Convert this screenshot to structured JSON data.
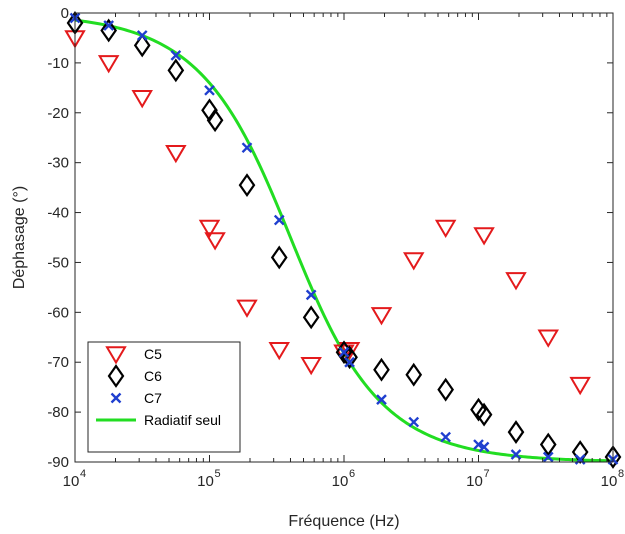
{
  "chart_data": {
    "type": "scatter",
    "xlabel": "Fréquence (Hz)",
    "ylabel": "Déphasage (°)",
    "xscale": "log",
    "xlim": [
      10000,
      100000000
    ],
    "ylim": [
      -90,
      0
    ],
    "x_ticks": [
      {
        "value": 10000,
        "base": "10",
        "exp": "4"
      },
      {
        "value": 100000,
        "base": "10",
        "exp": "5"
      },
      {
        "value": 1000000,
        "base": "10",
        "exp": "6"
      },
      {
        "value": 10000000,
        "base": "10",
        "exp": "7"
      },
      {
        "value": 100000000,
        "base": "10",
        "exp": "8"
      }
    ],
    "y_ticks": [
      {
        "value": 0,
        "label": "0"
      },
      {
        "value": -10,
        "label": "-10"
      },
      {
        "value": -20,
        "label": "-20"
      },
      {
        "value": -30,
        "label": "-30"
      },
      {
        "value": -40,
        "label": "-40"
      },
      {
        "value": -50,
        "label": "-50"
      },
      {
        "value": -60,
        "label": "-60"
      },
      {
        "value": -70,
        "label": "-70"
      },
      {
        "value": -80,
        "label": "-80"
      },
      {
        "value": -90,
        "label": "-90"
      }
    ],
    "grid": false,
    "legend_position": "bottom-left",
    "series": [
      {
        "name": "C5",
        "marker": "triangle-down",
        "color": "#e41a1c",
        "points": [
          [
            10000,
            -5
          ],
          [
            17800,
            -10
          ],
          [
            31600,
            -17
          ],
          [
            56200,
            -28
          ],
          [
            100000,
            -43
          ],
          [
            110000,
            -45.5
          ],
          [
            190000,
            -59
          ],
          [
            330000,
            -67.5
          ],
          [
            570000,
            -70.5
          ],
          [
            1000000,
            -68
          ],
          [
            1100000,
            -67.5
          ],
          [
            1900000,
            -60.5
          ],
          [
            3300000,
            -49.5
          ],
          [
            5700000,
            -43
          ],
          [
            11000000,
            -44.5
          ],
          [
            19000000,
            -53.5
          ],
          [
            33000000,
            -65
          ],
          [
            57000000,
            -74.5
          ]
        ]
      },
      {
        "name": "C6",
        "marker": "diamond",
        "color": "#000000",
        "points": [
          [
            10000,
            -2
          ],
          [
            17800,
            -3.5
          ],
          [
            31600,
            -6.5
          ],
          [
            56200,
            -11.5
          ],
          [
            100000,
            -19.5
          ],
          [
            110000,
            -21.5
          ],
          [
            190000,
            -34.5
          ],
          [
            330000,
            -49
          ],
          [
            570000,
            -61
          ],
          [
            1000000,
            -68
          ],
          [
            1100000,
            -69
          ],
          [
            1900000,
            -71.5
          ],
          [
            3300000,
            -72.5
          ],
          [
            5700000,
            -75.5
          ],
          [
            10000000,
            -79.5
          ],
          [
            11000000,
            -80.5
          ],
          [
            19000000,
            -84
          ],
          [
            33000000,
            -86.5
          ],
          [
            57000000,
            -88
          ],
          [
            100000000,
            -89
          ]
        ]
      },
      {
        "name": "C7",
        "marker": "x",
        "color": "#1f3fcf",
        "points": [
          [
            10000,
            -1
          ],
          [
            17800,
            -2.5
          ],
          [
            31600,
            -4.5
          ],
          [
            56200,
            -8.5
          ],
          [
            100000,
            -15.5
          ],
          [
            190000,
            -27
          ],
          [
            330000,
            -41.5
          ],
          [
            570000,
            -56.5
          ],
          [
            1000000,
            -68
          ],
          [
            1100000,
            -70
          ],
          [
            1900000,
            -77.5
          ],
          [
            3300000,
            -82
          ],
          [
            5700000,
            -85
          ],
          [
            10000000,
            -86.5
          ],
          [
            11000000,
            -87
          ],
          [
            19000000,
            -88.5
          ],
          [
            33000000,
            -89
          ],
          [
            57000000,
            -89.5
          ],
          [
            100000000,
            -89.5
          ]
        ]
      },
      {
        "name": "Radiatif seul",
        "marker": "line",
        "color": "#22dd22",
        "cutoff_hz": 400000
      }
    ]
  }
}
